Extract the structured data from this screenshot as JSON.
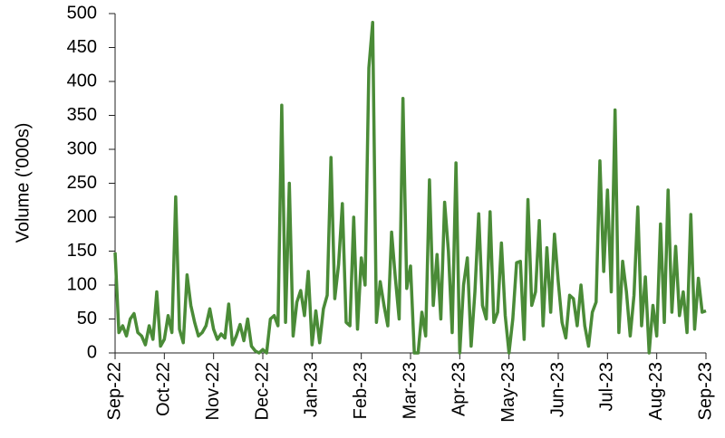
{
  "chart_data": {
    "type": "line",
    "y_label": "Volume ('000s)",
    "categories": [
      "Sep-22",
      null,
      null,
      null,
      null,
      null,
      null,
      null,
      null,
      null,
      null,
      null,
      null,
      "Oct-22",
      null,
      null,
      null,
      null,
      null,
      null,
      null,
      null,
      null,
      null,
      null,
      null,
      "Nov-22",
      null,
      null,
      null,
      null,
      null,
      null,
      null,
      null,
      null,
      null,
      null,
      null,
      "Dec-22",
      null,
      null,
      null,
      null,
      null,
      null,
      null,
      null,
      null,
      null,
      null,
      null,
      "Jan-23",
      null,
      null,
      null,
      null,
      null,
      null,
      null,
      null,
      null,
      null,
      null,
      null,
      "Feb-23",
      null,
      null,
      null,
      null,
      null,
      null,
      null,
      null,
      null,
      null,
      null,
      null,
      "Mar-23",
      null,
      null,
      null,
      null,
      null,
      null,
      null,
      null,
      null,
      null,
      null,
      null,
      "Apr-23",
      null,
      null,
      null,
      null,
      null,
      null,
      null,
      null,
      null,
      null,
      null,
      null,
      "May-23",
      null,
      null,
      null,
      null,
      null,
      null,
      null,
      null,
      null,
      null,
      null,
      null,
      "Jun-23",
      null,
      null,
      null,
      null,
      null,
      null,
      null,
      null,
      null,
      null,
      null,
      null,
      "Jul-23",
      null,
      null,
      null,
      null,
      null,
      null,
      null,
      null,
      null,
      null,
      null,
      null,
      "Aug-23",
      null,
      null,
      null,
      null,
      null,
      null,
      null,
      null,
      null,
      null,
      null,
      null,
      "Sep-23"
    ],
    "values": [
      148,
      30,
      40,
      25,
      50,
      58,
      30,
      25,
      12,
      40,
      20,
      90,
      10,
      20,
      55,
      30,
      230,
      35,
      15,
      115,
      70,
      45,
      25,
      30,
      40,
      65,
      35,
      20,
      28,
      22,
      72,
      12,
      25,
      42,
      18,
      50,
      10,
      3,
      0,
      5,
      0,
      50,
      55,
      40,
      365,
      45,
      250,
      25,
      75,
      92,
      55,
      120,
      12,
      62,
      15,
      65,
      85,
      288,
      80,
      130,
      220,
      45,
      40,
      200,
      35,
      140,
      100,
      420,
      487,
      45,
      105,
      70,
      40,
      178,
      110,
      50,
      375,
      95,
      128,
      0,
      0,
      60,
      25,
      255,
      70,
      145,
      50,
      222,
      150,
      30,
      280,
      0,
      100,
      140,
      10,
      90,
      205,
      70,
      50,
      208,
      45,
      60,
      162,
      55,
      0,
      50,
      133,
      135,
      20,
      226,
      70,
      90,
      195,
      40,
      155,
      60,
      175,
      105,
      45,
      22,
      85,
      80,
      40,
      100,
      40,
      10,
      60,
      75,
      283,
      120,
      240,
      90,
      358,
      30,
      135,
      90,
      25,
      85,
      215,
      40,
      112,
      0,
      70,
      25,
      190,
      45,
      240,
      60,
      157,
      55,
      90,
      30,
      204,
      35,
      110,
      60,
      62
    ],
    "color": "#4a8b37",
    "ylim": [
      0,
      500
    ],
    "yticks": [
      0,
      50,
      100,
      150,
      200,
      250,
      300,
      350,
      400,
      450,
      500
    ],
    "grid": false
  }
}
